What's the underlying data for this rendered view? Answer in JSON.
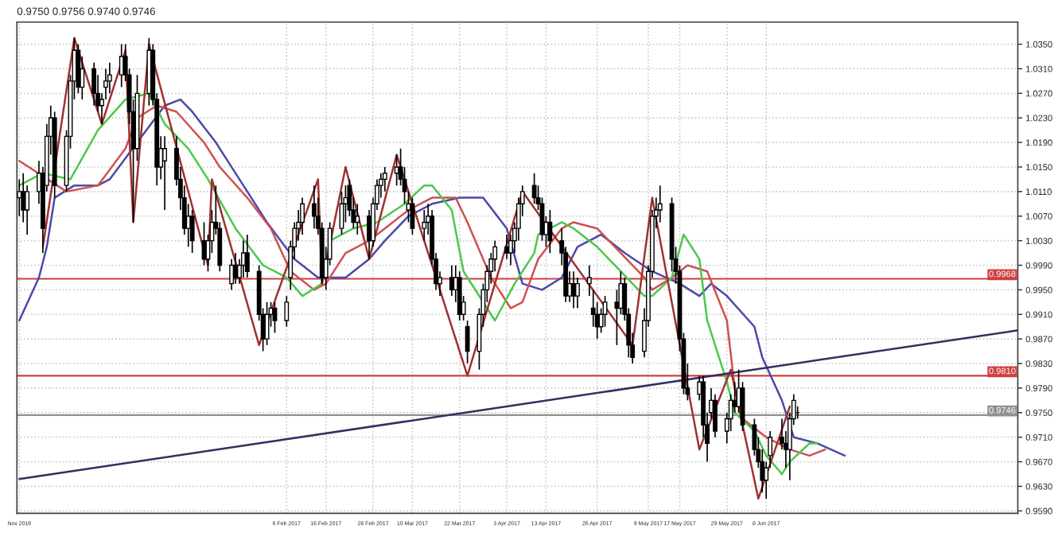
{
  "chart_data": {
    "type": "candlestick",
    "annotations": [
      "0.9750 0.9756 0.9740 0.9746"
    ],
    "x": [
      "2016-11-30",
      "2016-12-01",
      "2016-12-02",
      "2016-12-05",
      "2016-12-06",
      "2016-12-07",
      "2016-12-08",
      "2016-12-09",
      "2016-12-12",
      "2016-12-13",
      "2016-12-14",
      "2016-12-15",
      "2016-12-16",
      "2016-12-19",
      "2016-12-20",
      "2016-12-21",
      "2016-12-22",
      "2016-12-23",
      "2016-12-26",
      "2016-12-27",
      "2016-12-28",
      "2016-12-29",
      "2016-12-30",
      "2017-01-02",
      "2017-01-03",
      "2017-01-04",
      "2017-01-05",
      "2017-01-06",
      "2017-01-09",
      "2017-01-10",
      "2017-01-11",
      "2017-01-12",
      "2017-01-13",
      "2017-01-16",
      "2017-01-17",
      "2017-01-18",
      "2017-01-19",
      "2017-01-20",
      "2017-01-23",
      "2017-01-24",
      "2017-01-25",
      "2017-01-26",
      "2017-01-27",
      "2017-01-30",
      "2017-01-31",
      "2017-02-01",
      "2017-02-02",
      "2017-02-03",
      "2017-02-06",
      "2017-02-07",
      "2017-02-08",
      "2017-02-09",
      "2017-02-10",
      "2017-02-13",
      "2017-02-14",
      "2017-02-15",
      "2017-02-16",
      "2017-02-17",
      "2017-02-20",
      "2017-02-21",
      "2017-02-22",
      "2017-02-23",
      "2017-02-24",
      "2017-02-27",
      "2017-02-28",
      "2017-03-01",
      "2017-03-02",
      "2017-03-03",
      "2017-03-06",
      "2017-03-07",
      "2017-03-08",
      "2017-03-09",
      "2017-03-10",
      "2017-03-13",
      "2017-03-14",
      "2017-03-15",
      "2017-03-16",
      "2017-03-17",
      "2017-03-20",
      "2017-03-21",
      "2017-03-22",
      "2017-03-23",
      "2017-03-24",
      "2017-03-27",
      "2017-03-28",
      "2017-03-29",
      "2017-03-30",
      "2017-03-31",
      "2017-04-03",
      "2017-04-04",
      "2017-04-05",
      "2017-04-06",
      "2017-04-07",
      "2017-04-10",
      "2017-04-11",
      "2017-04-12",
      "2017-04-13",
      "2017-04-14",
      "2017-04-17",
      "2017-04-18",
      "2017-04-19",
      "2017-04-20",
      "2017-04-21",
      "2017-04-24",
      "2017-04-25",
      "2017-04-26",
      "2017-04-27",
      "2017-04-28",
      "2017-05-01",
      "2017-05-02",
      "2017-05-03",
      "2017-05-04",
      "2017-05-05",
      "2017-05-08",
      "2017-05-09",
      "2017-05-10",
      "2017-05-11",
      "2017-05-12",
      "2017-05-15",
      "2017-05-16",
      "2017-05-17",
      "2017-05-18",
      "2017-05-19",
      "2017-05-22",
      "2017-05-23",
      "2017-05-24",
      "2017-05-25",
      "2017-05-26",
      "2017-05-29",
      "2017-05-30",
      "2017-05-31",
      "2017-06-01",
      "2017-06-02",
      "2017-06-05",
      "2017-06-06",
      "2017-06-07",
      "2017-06-08",
      "2017-06-09",
      "2017-06-12",
      "2017-06-13",
      "2017-06-14",
      "2017-06-15",
      "2017-06-16"
    ],
    "ohlc": [
      [
        1.01,
        1.013,
        1.007,
        1.011
      ],
      [
        1.011,
        1.014,
        1.006,
        1.008
      ],
      [
        1.008,
        1.012,
        1.004,
        1.011
      ],
      [
        1.011,
        1.016,
        1.009,
        1.014
      ],
      [
        1.014,
        1.015,
        1.001,
        1.005
      ],
      [
        1.012,
        1.022,
        1.011,
        1.02
      ],
      [
        1.02,
        1.025,
        1.017,
        1.023
      ],
      [
        1.023,
        1.024,
        1.01,
        1.012
      ],
      [
        1.012,
        1.021,
        1.011,
        1.02
      ],
      [
        1.02,
        1.03,
        1.018,
        1.029
      ],
      [
        1.029,
        1.036,
        1.026,
        1.034
      ],
      [
        1.034,
        1.035,
        1.027,
        1.028
      ],
      [
        1.028,
        1.033,
        1.026,
        1.031
      ],
      [
        1.031,
        1.032,
        1.025,
        1.027
      ],
      [
        1.027,
        1.03,
        1.024,
        1.025
      ],
      [
        1.025,
        1.027,
        1.022,
        1.026
      ],
      [
        1.028,
        1.031,
        1.026,
        1.029
      ],
      [
        1.029,
        1.032,
        1.027,
        1.03
      ],
      [
        1.03,
        1.035,
        1.028,
        1.033
      ],
      [
        1.033,
        1.035,
        1.029,
        1.03
      ],
      [
        1.03,
        1.031,
        1.022,
        1.024
      ],
      [
        1.024,
        1.026,
        1.006,
        1.018
      ],
      [
        1.018,
        1.03,
        1.016,
        1.027
      ],
      [
        1.027,
        1.036,
        1.025,
        1.034
      ],
      [
        1.034,
        1.035,
        1.025,
        1.026
      ],
      [
        1.026,
        1.027,
        1.012,
        1.015
      ],
      [
        1.015,
        1.02,
        1.013,
        1.018
      ],
      [
        1.016,
        1.02,
        1.008,
        1.018
      ],
      [
        1.018,
        1.02,
        1.012,
        1.013
      ],
      [
        1.013,
        1.015,
        1.008,
        1.01
      ],
      [
        1.01,
        1.012,
        1.004,
        1.005
      ],
      [
        1.005,
        1.009,
        1.002,
        1.007
      ],
      [
        1.007,
        1.008,
        1.001,
        1.003
      ],
      [
        1.003,
        1.006,
        0.999,
        1.0
      ],
      [
        1.0,
        1.004,
        0.998,
        1.003
      ],
      [
        1.003,
        1.008,
        1.001,
        1.006
      ],
      [
        1.006,
        1.012,
        1.004,
        1.005
      ],
      [
        1.005,
        1.006,
        0.998,
        0.999
      ],
      [
        0.996,
        1.0,
        0.995,
        0.999
      ],
      [
        0.999,
        1.001,
        0.996,
        0.997
      ],
      [
        0.997,
        1.0,
        0.996,
        0.999
      ],
      [
        0.999,
        1.003,
        0.997,
        1.001
      ],
      [
        1.001,
        1.004,
        0.997,
        0.998
      ],
      [
        0.998,
        0.999,
        0.99,
        0.991
      ],
      [
        0.991,
        0.992,
        0.985,
        0.987
      ],
      [
        0.987,
        0.993,
        0.986,
        0.991
      ],
      [
        0.991,
        0.993,
        0.989,
        0.992
      ],
      [
        0.992,
        0.993,
        0.988,
        0.99
      ],
      [
        0.99,
        0.994,
        0.989,
        0.993
      ],
      [
        0.997,
        1.003,
        0.995,
        1.002
      ],
      [
        1.002,
        1.006,
        1.0,
        1.005
      ],
      [
        1.005,
        1.008,
        1.003,
        1.006
      ],
      [
        1.006,
        1.01,
        1.004,
        1.009
      ],
      [
        1.009,
        1.012,
        1.005,
        1.007
      ],
      [
        1.007,
        1.01,
        1.004,
        1.005
      ],
      [
        1.005,
        1.006,
        0.996,
        0.997
      ],
      [
        0.997,
        1.002,
        0.995,
        1.0
      ],
      [
        1.0,
        1.006,
        0.999,
        1.005
      ],
      [
        1.005,
        1.011,
        1.004,
        1.009
      ],
      [
        1.009,
        1.012,
        1.006,
        1.01
      ],
      [
        1.012,
        1.013,
        1.007,
        1.008
      ],
      [
        1.008,
        1.01,
        1.005,
        1.006
      ],
      [
        1.006,
        1.009,
        1.004,
        1.007
      ],
      [
        1.007,
        1.008,
        1.0,
        1.003
      ],
      [
        1.003,
        1.01,
        1.002,
        1.009
      ],
      [
        1.009,
        1.013,
        1.008,
        1.012
      ],
      [
        1.012,
        1.014,
        1.01,
        1.013
      ],
      [
        1.013,
        1.015,
        1.011,
        1.014
      ],
      [
        1.014,
        1.017,
        1.012,
        1.015
      ],
      [
        1.015,
        1.018,
        1.012,
        1.013
      ],
      [
        1.013,
        1.015,
        1.009,
        1.011
      ],
      [
        1.008,
        1.011,
        1.006,
        1.009
      ],
      [
        1.009,
        1.01,
        1.004,
        1.005
      ],
      [
        1.005,
        1.008,
        1.003,
        1.006
      ],
      [
        1.006,
        1.009,
        1.004,
        1.007
      ],
      [
        1.007,
        1.008,
        0.999,
        1.0
      ],
      [
        1.0,
        1.001,
        0.995,
        0.996
      ],
      [
        0.996,
        0.998,
        0.994,
        0.997
      ],
      [
        0.997,
        0.999,
        0.994,
        0.995
      ],
      [
        0.995,
        0.999,
        0.993,
        0.997
      ],
      [
        0.997,
        0.998,
        0.99,
        0.991
      ],
      [
        0.991,
        0.994,
        0.99,
        0.993
      ],
      [
        0.989,
        0.99,
        0.983,
        0.985
      ],
      [
        0.985,
        0.992,
        0.982,
        0.991
      ],
      [
        0.991,
        0.996,
        0.989,
        0.995
      ],
      [
        0.995,
        0.999,
        0.993,
        0.998
      ],
      [
        0.998,
        1.001,
        0.996,
        1.0
      ],
      [
        1.0,
        1.003,
        0.998,
        1.002
      ],
      [
        1.002,
        1.004,
        1.0,
        1.001
      ],
      [
        1.001,
        1.004,
        0.999,
        1.003
      ],
      [
        1.003,
        1.006,
        1.001,
        1.005
      ],
      [
        1.005,
        1.01,
        1.003,
        1.009
      ],
      [
        1.009,
        1.012,
        1.007,
        1.011
      ],
      [
        1.012,
        1.014,
        1.009,
        1.01
      ],
      [
        1.01,
        1.012,
        1.008,
        1.009
      ],
      [
        1.009,
        1.01,
        1.003,
        1.004
      ],
      [
        1.004,
        1.007,
        1.002,
        1.006
      ],
      [
        1.006,
        1.008,
        1.001,
        1.003
      ],
      [
        1.003,
        1.005,
        0.999,
        1.001
      ],
      [
        1.001,
        1.002,
        0.993,
        0.994
      ],
      [
        0.994,
        0.998,
        0.993,
        0.996
      ],
      [
        0.996,
        0.998,
        0.992,
        0.994
      ],
      [
        0.994,
        0.997,
        0.992,
        0.996
      ],
      [
        0.996,
        0.999,
        0.994,
        0.997
      ],
      [
        0.992,
        0.995,
        0.989,
        0.991
      ],
      [
        0.991,
        0.993,
        0.987,
        0.989
      ],
      [
        0.989,
        0.992,
        0.988,
        0.991
      ],
      [
        0.991,
        0.994,
        0.989,
        0.993
      ],
      [
        0.993,
        0.995,
        0.986,
        0.992
      ],
      [
        0.992,
        0.998,
        0.991,
        0.996
      ],
      [
        0.996,
        0.997,
        0.99,
        0.991
      ],
      [
        0.991,
        0.992,
        0.984,
        0.986
      ],
      [
        0.986,
        0.988,
        0.983,
        0.984
      ],
      [
        0.985,
        0.992,
        0.984,
        0.99
      ],
      [
        0.99,
        0.999,
        0.989,
        0.998
      ],
      [
        0.998,
        1.008,
        0.997,
        1.007
      ],
      [
        1.007,
        1.01,
        1.005,
        1.008
      ],
      [
        1.008,
        1.012,
        1.006,
        1.009
      ],
      [
        1.009,
        1.01,
        0.998,
        1.0
      ],
      [
        1.0,
        1.002,
        0.996,
        0.998
      ],
      [
        0.998,
        0.999,
        0.985,
        0.987
      ],
      [
        0.987,
        0.988,
        0.978,
        0.979
      ],
      [
        0.979,
        0.983,
        0.977,
        0.978
      ],
      [
        0.978,
        0.981,
        0.977,
        0.98
      ],
      [
        0.98,
        0.981,
        0.971,
        0.973
      ],
      [
        0.973,
        0.975,
        0.967,
        0.97
      ],
      [
        0.975,
        0.979,
        0.974,
        0.977
      ],
      [
        0.977,
        0.978,
        0.971,
        0.972
      ],
      [
        0.972,
        0.975,
        0.97,
        0.974
      ],
      [
        0.974,
        0.978,
        0.972,
        0.977
      ],
      [
        0.977,
        0.98,
        0.975,
        0.976
      ],
      [
        0.976,
        0.982,
        0.975,
        0.979
      ],
      [
        0.979,
        0.98,
        0.972,
        0.973
      ],
      [
        0.973,
        0.974,
        0.968,
        0.969
      ],
      [
        0.969,
        0.971,
        0.966,
        0.967
      ],
      [
        0.967,
        0.969,
        0.962,
        0.964
      ],
      [
        0.964,
        0.967,
        0.961,
        0.966
      ],
      [
        0.968,
        0.972,
        0.966,
        0.971
      ],
      [
        0.971,
        0.974,
        0.969,
        0.97
      ],
      [
        0.97,
        0.972,
        0.966,
        0.969
      ],
      [
        0.969,
        0.975,
        0.964,
        0.974
      ],
      [
        0.974,
        0.978,
        0.973,
        0.977
      ],
      [
        0.975,
        0.976,
        0.974,
        0.975
      ]
    ],
    "series": [
      {
        "type": "line",
        "color": "#4a4aa8",
        "x": [
          "2016-11-30",
          "2016-12-05",
          "2016-12-07",
          "2016-12-09",
          "2016-12-14",
          "2016-12-20",
          "2016-12-23",
          "2016-12-30",
          "2017-01-06",
          "2017-01-10",
          "2017-01-13",
          "2017-01-19",
          "2017-01-26",
          "2017-02-01",
          "2017-02-08",
          "2017-02-14",
          "2017-02-21",
          "2017-02-27",
          "2017-03-03",
          "2017-03-09",
          "2017-03-15",
          "2017-03-22",
          "2017-03-28",
          "2017-04-03",
          "2017-04-07",
          "2017-04-12",
          "2017-04-17",
          "2017-04-21",
          "2017-04-27",
          "2017-05-03",
          "2017-05-10",
          "2017-05-17",
          "2017-05-22",
          "2017-05-25",
          "2017-05-29",
          "2017-06-05",
          "2017-06-07",
          "2017-06-12",
          "2017-06-15",
          "2017-06-21",
          "2017-06-28"
        ],
        "values": [
          0.99,
          0.997,
          1.002,
          1.01,
          1.012,
          1.012,
          1.013,
          1.019,
          1.025,
          1.026,
          1.024,
          1.019,
          1.012,
          1.006,
          1.0,
          0.997,
          0.997,
          1.0,
          1.003,
          1.007,
          1.009,
          1.01,
          1.01,
          1.005,
          0.996,
          0.995,
          0.997,
          1.002,
          1.004,
          1.001,
          0.998,
          0.996,
          0.994,
          0.996,
          0.994,
          0.989,
          0.984,
          0.977,
          0.971,
          0.97,
          0.968
        ]
      },
      {
        "type": "line",
        "color": "#d05050",
        "x": [
          "2016-11-30",
          "2016-12-12",
          "2016-12-20",
          "2016-12-27",
          "2016-12-30",
          "2017-01-04",
          "2017-01-09",
          "2017-01-16",
          "2017-01-20",
          "2017-01-27",
          "2017-02-02",
          "2017-02-07",
          "2017-02-13",
          "2017-02-16",
          "2017-02-21",
          "2017-02-27",
          "2017-03-03",
          "2017-03-09",
          "2017-03-15",
          "2017-03-21",
          "2017-03-24",
          "2017-03-30",
          "2017-04-04",
          "2017-04-07",
          "2017-04-11",
          "2017-04-17",
          "2017-04-20",
          "2017-04-26",
          "2017-05-02",
          "2017-05-08",
          "2017-05-10",
          "2017-05-15",
          "2017-05-19",
          "2017-05-24",
          "2017-05-29",
          "2017-05-31",
          "2017-06-02",
          "2017-06-08",
          "2017-06-14",
          "2017-06-19",
          "2017-06-23"
        ],
        "values": [
          1.016,
          1.011,
          1.012,
          1.018,
          1.023,
          1.025,
          1.024,
          1.019,
          1.015,
          1.01,
          1.005,
          0.998,
          0.995,
          0.996,
          1.001,
          1.003,
          1.005,
          1.008,
          1.01,
          1.01,
          1.006,
          0.997,
          0.992,
          0.993,
          1.0,
          1.005,
          1.006,
          1.005,
          1.001,
          0.997,
          0.995,
          0.997,
          0.999,
          0.998,
          0.99,
          0.979,
          0.974,
          0.971,
          0.969,
          0.968,
          0.969
        ]
      },
      {
        "type": "line",
        "color": "#4cc84c",
        "x": [
          "2016-11-30",
          "2016-12-06",
          "2016-12-13",
          "2016-12-20",
          "2016-12-27",
          "2017-01-02",
          "2017-01-06",
          "2017-01-12",
          "2017-01-17",
          "2017-01-24",
          "2017-01-31",
          "2017-02-06",
          "2017-02-10",
          "2017-02-15",
          "2017-02-17",
          "2017-02-23",
          "2017-03-01",
          "2017-03-08",
          "2017-03-13",
          "2017-03-15",
          "2017-03-20",
          "2017-03-23",
          "2017-03-29",
          "2017-03-31",
          "2017-04-05",
          "2017-04-10",
          "2017-04-11",
          "2017-04-17",
          "2017-04-20",
          "2017-04-26",
          "2017-05-02",
          "2017-05-08",
          "2017-05-10",
          "2017-05-15",
          "2017-05-18",
          "2017-05-22",
          "2017-05-24",
          "2017-05-29",
          "2017-05-31",
          "2017-06-05",
          "2017-06-08",
          "2017-06-12",
          "2017-06-14",
          "2017-06-19",
          "2017-06-21"
        ],
        "values": [
          1.012,
          1.014,
          1.013,
          1.021,
          1.026,
          1.027,
          1.022,
          1.018,
          1.013,
          1.005,
          0.999,
          0.997,
          0.994,
          0.996,
          1.003,
          1.005,
          1.006,
          1.009,
          1.012,
          1.012,
          1.008,
          0.998,
          0.992,
          0.99,
          0.996,
          1.001,
          1.004,
          1.006,
          1.005,
          1.002,
          0.998,
          0.994,
          0.994,
          0.997,
          1.004,
          1.0,
          0.99,
          0.98,
          0.975,
          0.972,
          0.968,
          0.965,
          0.967,
          0.97,
          0.97
        ]
      },
      {
        "type": "line",
        "color": "#a03030",
        "x": [
          "2016-12-06",
          "2016-12-14",
          "2016-12-21",
          "2016-12-27",
          "2016-12-29",
          "2017-01-02",
          "2017-01-17",
          "2017-01-18",
          "2017-01-30",
          "2017-02-14",
          "2017-02-15",
          "2017-02-21",
          "2017-02-27",
          "2017-03-06",
          "2017-03-24",
          "2017-04-07",
          "2017-05-05",
          "2017-05-10",
          "2017-05-22",
          "2017-05-30",
          "2017-06-06",
          "2017-06-14"
        ],
        "values": [
          1.002,
          1.036,
          1.022,
          1.034,
          1.006,
          1.035,
          0.999,
          1.013,
          0.986,
          1.013,
          0.996,
          1.015,
          1.0,
          1.017,
          0.981,
          1.011,
          0.986,
          1.01,
          0.969,
          0.982,
          0.961,
          0.976
        ]
      },
      {
        "type": "line",
        "color": "#303060",
        "x": [
          "2016-11-30",
          "2017-08-11"
        ],
        "values": [
          0.9642,
          0.9884
        ]
      }
    ],
    "xlim": [
      "2016-11-30",
      "2017-08-11"
    ],
    "xticks": [
      {
        "value": "2016-11-30",
        "label": "Nov 2016"
      },
      {
        "value": "2017-02-06",
        "label": "6 Feb 2017"
      },
      {
        "value": "2017-02-16",
        "label": "16 Feb 2017"
      },
      {
        "value": "2017-02-28",
        "label": "28 Feb 2017"
      },
      {
        "value": "2017-03-10",
        "label": "10 Mar 2017"
      },
      {
        "value": "2017-03-22",
        "label": "22 Mar 2017"
      },
      {
        "value": "2017-04-03",
        "label": "3 Apr 2017"
      },
      {
        "value": "2017-04-13",
        "label": "13 Apr 2017"
      },
      {
        "value": "2017-04-26",
        "label": "26 Apr 2017"
      },
      {
        "value": "2017-05-09",
        "label": "9 May 2017"
      },
      {
        "value": "2017-05-17",
        "label": "17 May 2017"
      },
      {
        "value": "2017-05-29",
        "label": "29 May 2017"
      },
      {
        "value": "2017-06-08",
        "label": "8 Jun 2017"
      }
    ],
    "ylim": [
      0.9586,
      1.0386
    ],
    "yticks": [
      {
        "value": 1.035,
        "label": "1.0350"
      },
      {
        "value": 1.031,
        "label": "1.0310"
      },
      {
        "value": 1.027,
        "label": "1.0270"
      },
      {
        "value": 1.023,
        "label": "1.0230"
      },
      {
        "value": 1.019,
        "label": "1.0190"
      },
      {
        "value": 1.015,
        "label": "1.0150"
      },
      {
        "value": 1.011,
        "label": "1.0110"
      },
      {
        "value": 1.007,
        "label": "1.0070"
      },
      {
        "value": 1.003,
        "label": "1.0030"
      },
      {
        "value": 0.999,
        "label": "0.9990"
      },
      {
        "value": 0.995,
        "label": "0.9950"
      },
      {
        "value": 0.991,
        "label": "0.9910"
      },
      {
        "value": 0.987,
        "label": "0.9870"
      },
      {
        "value": 0.983,
        "label": "0.9830"
      },
      {
        "value": 0.979,
        "label": "0.9790"
      },
      {
        "value": 0.975,
        "label": "0.9750"
      },
      {
        "value": 0.971,
        "label": "0.9710"
      },
      {
        "value": 0.967,
        "label": "0.9670"
      },
      {
        "value": 0.963,
        "label": "0.9630"
      },
      {
        "value": 0.959,
        "label": "0.9590"
      }
    ],
    "ref_lines": [
      {
        "axis": "y",
        "value": 0.9968,
        "label": "0.9968",
        "color": "#d04040"
      },
      {
        "axis": "y",
        "value": 0.981,
        "label": "0.9810",
        "color": "#d04040"
      },
      {
        "axis": "y",
        "value": 0.9746,
        "label": "0.9746",
        "color": "#909090"
      }
    ],
    "grid": true
  }
}
